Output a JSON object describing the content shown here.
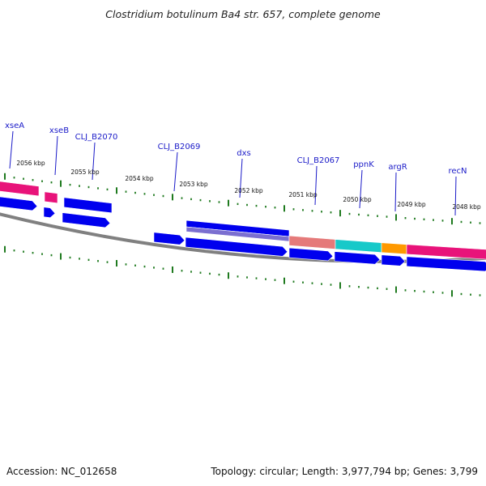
{
  "title": "Clostridium botulinum Ba4 str. 657, complete genome",
  "accession": "Accession: NC_012658",
  "summary": "Topology: circular; Length: 3,977,794 bp; Genes: 3,799",
  "genes": [
    {
      "name": "xseA"
    },
    {
      "name": "xseB"
    },
    {
      "name": "CLJ_B2070"
    },
    {
      "name": "CLJ_B2069"
    },
    {
      "name": "dxs"
    },
    {
      "name": "CLJ_B2067"
    },
    {
      "name": "ppnK"
    },
    {
      "name": "argR"
    },
    {
      "name": "recN"
    }
  ],
  "ticks": [
    "2056 kbp",
    "2055 kbp",
    "2054 kbp",
    "2053 kbp",
    "2052 kbp",
    "2051 kbp",
    "2050 kbp",
    "2049 kbp",
    "2048 kbp"
  ],
  "colors": {
    "cds": "#0000ee",
    "gene_pink": "#e8137a",
    "gene_purple": "#7b6fd0",
    "gene_salmon": "#e57a7a",
    "gene_cyan": "#17c9c9",
    "gene_orange": "#ff9900",
    "backbone": "#808080",
    "tick": "#1f7a1f",
    "label": "#1a1ac8"
  }
}
